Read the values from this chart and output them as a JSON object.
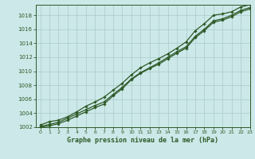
{
  "title": "Graphe pression niveau de la mer (hPa)",
  "xlim": [
    -0.5,
    23
  ],
  "ylim": [
    1002,
    1019.5
  ],
  "yticks": [
    1002,
    1004,
    1006,
    1008,
    1010,
    1012,
    1014,
    1016,
    1018
  ],
  "xticks": [
    0,
    1,
    2,
    3,
    4,
    5,
    6,
    7,
    8,
    9,
    10,
    11,
    12,
    13,
    14,
    15,
    16,
    17,
    18,
    19,
    20,
    21,
    22,
    23
  ],
  "background_color": "#cce8e8",
  "grid_color": "#aacaca",
  "line_color": "#2d5a27",
  "series1": [
    [
      0,
      1002.3
    ],
    [
      1,
      1002.8
    ],
    [
      2,
      1003.0
    ],
    [
      3,
      1003.5
    ],
    [
      4,
      1004.2
    ],
    [
      5,
      1005.0
    ],
    [
      6,
      1005.6
    ],
    [
      7,
      1006.3
    ],
    [
      8,
      1007.3
    ],
    [
      9,
      1008.3
    ],
    [
      10,
      1009.5
    ],
    [
      11,
      1010.5
    ],
    [
      12,
      1011.2
    ],
    [
      13,
      1011.8
    ],
    [
      14,
      1012.5
    ],
    [
      15,
      1013.3
    ],
    [
      16,
      1014.2
    ],
    [
      17,
      1015.8
    ],
    [
      18,
      1016.8
    ],
    [
      19,
      1018.0
    ],
    [
      20,
      1018.2
    ],
    [
      21,
      1018.5
    ],
    [
      22,
      1019.2
    ],
    [
      23,
      1019.5
    ]
  ],
  "series2": [
    [
      0,
      1002.1
    ],
    [
      1,
      1002.4
    ],
    [
      2,
      1002.7
    ],
    [
      3,
      1003.3
    ],
    [
      4,
      1003.9
    ],
    [
      5,
      1004.5
    ],
    [
      6,
      1005.1
    ],
    [
      7,
      1005.6
    ],
    [
      8,
      1006.7
    ],
    [
      9,
      1007.7
    ],
    [
      10,
      1008.9
    ],
    [
      11,
      1009.8
    ],
    [
      12,
      1010.5
    ],
    [
      13,
      1011.2
    ],
    [
      14,
      1012.0
    ],
    [
      15,
      1012.8
    ],
    [
      16,
      1013.5
    ],
    [
      17,
      1015.0
    ],
    [
      18,
      1016.0
    ],
    [
      19,
      1017.2
    ],
    [
      20,
      1017.5
    ],
    [
      21,
      1018.0
    ],
    [
      22,
      1018.7
    ],
    [
      23,
      1019.1
    ]
  ],
  "series3": [
    [
      0,
      1002.0
    ],
    [
      1,
      1002.2
    ],
    [
      2,
      1002.5
    ],
    [
      3,
      1003.0
    ],
    [
      4,
      1003.6
    ],
    [
      5,
      1004.2
    ],
    [
      6,
      1004.8
    ],
    [
      7,
      1005.3
    ],
    [
      8,
      1006.5
    ],
    [
      9,
      1007.5
    ],
    [
      10,
      1008.8
    ],
    [
      11,
      1009.7
    ],
    [
      12,
      1010.4
    ],
    [
      13,
      1011.0
    ],
    [
      14,
      1011.8
    ],
    [
      15,
      1012.6
    ],
    [
      16,
      1013.3
    ],
    [
      17,
      1014.8
    ],
    [
      18,
      1015.8
    ],
    [
      19,
      1017.0
    ],
    [
      20,
      1017.3
    ],
    [
      21,
      1017.8
    ],
    [
      22,
      1018.5
    ],
    [
      23,
      1018.9
    ]
  ]
}
